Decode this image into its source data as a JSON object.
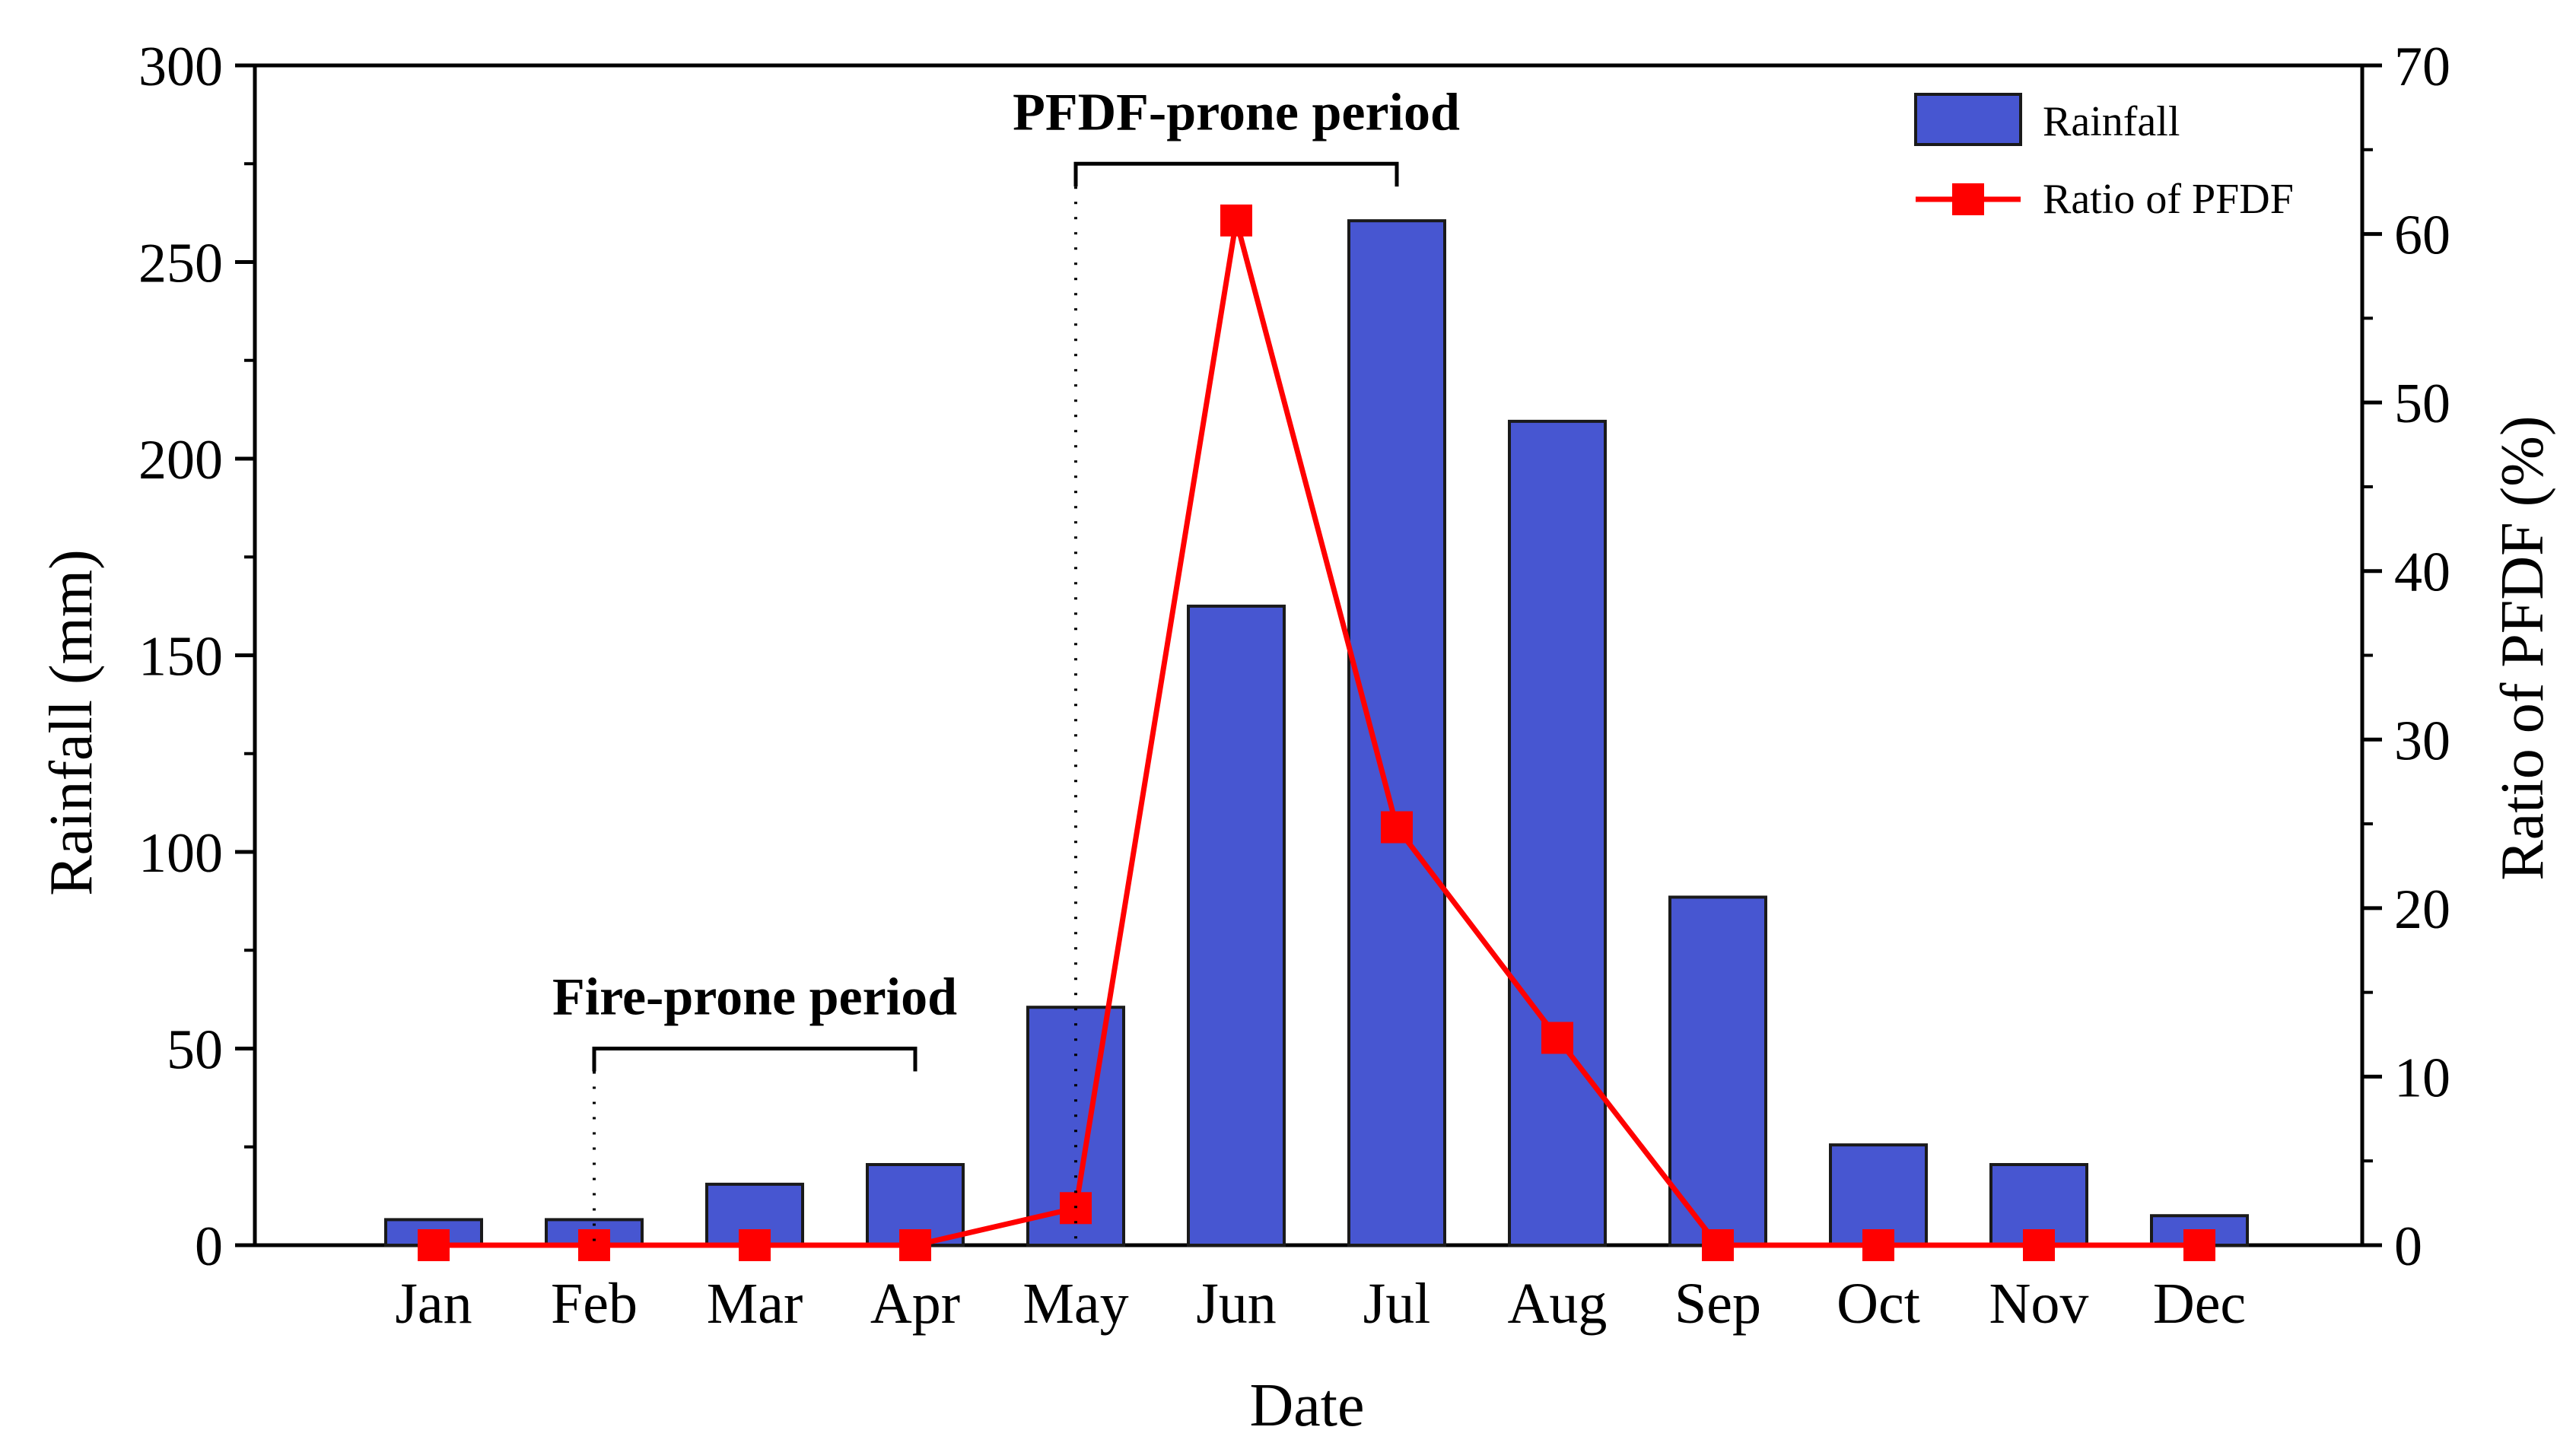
{
  "chart_data": {
    "type": "bar",
    "categories": [
      "Jan",
      "Feb",
      "Mar",
      "Apr",
      "May",
      "Jun",
      "Jul",
      "Aug",
      "Sep",
      "Oct",
      "Nov",
      "Dec"
    ],
    "series": [
      {
        "name": "Rainfall",
        "type": "bar",
        "axis": "left",
        "values": [
          6.5,
          6.5,
          15.5,
          20.5,
          60.5,
          162.5,
          260.5,
          209.5,
          88.5,
          25.5,
          20.5,
          7.5
        ]
      },
      {
        "name": "Ratio of PFDF",
        "type": "line",
        "axis": "right",
        "values": [
          0,
          0,
          0,
          0,
          2.2,
          60.8,
          24.8,
          12.3,
          0,
          0,
          0,
          0
        ]
      }
    ],
    "xlabel": "Date",
    "ylabel": "Rainfall (mm)",
    "y2label": "Ratio of PFDF (%)",
    "ylim": [
      0,
      300
    ],
    "y2lim": [
      0,
      70
    ],
    "yticks": [
      0,
      50,
      100,
      150,
      200,
      250,
      300
    ],
    "y2ticks": [
      0,
      10,
      20,
      30,
      40,
      50,
      60,
      70
    ],
    "legend": {
      "position": "top-right",
      "entries": [
        "Rainfall",
        "Ratio of PFDF"
      ]
    },
    "annotations": [
      {
        "text": "Fire-prone period",
        "from": "Feb",
        "to": "Apr",
        "marker_value": 50
      },
      {
        "text": "PFDF-prone period",
        "from": "May",
        "to": "Jul",
        "marker_value": 275
      }
    ],
    "colors": {
      "bar": "#4756d1",
      "bar_edge": "#1a1a1a",
      "line": "#ff0000",
      "axis": "#000000"
    }
  }
}
